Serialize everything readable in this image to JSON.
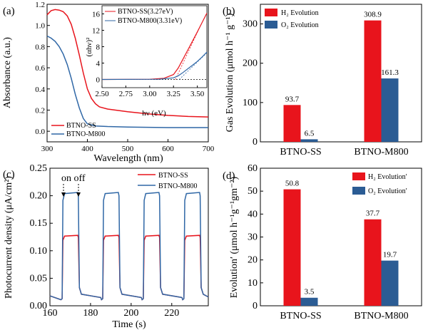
{
  "colors": {
    "red": "#e8141c",
    "blue": "#2f67a6",
    "dark_blue": "#2b5c94"
  },
  "chart_data": [
    {
      "id": "a",
      "panel_label": "(a)",
      "type": "line",
      "xlabel": "Wavelength (nm)",
      "ylabel": "Absorbance (a.u.)",
      "xlim": [
        300,
        700
      ],
      "ylim": [
        -0.1,
        1.2
      ],
      "xticks": [
        "300",
        "400",
        "500",
        "600",
        "700"
      ],
      "yticks": [
        "0.0",
        "0.2",
        "0.4",
        "0.6",
        "0.8",
        "1.0",
        "1.2"
      ],
      "series": [
        {
          "name": "BTNO-SS",
          "color": "red",
          "points": [
            [
              300,
              1.1
            ],
            [
              310,
              1.14
            ],
            [
              320,
              1.15
            ],
            [
              330,
              1.145
            ],
            [
              340,
              1.13
            ],
            [
              350,
              1.09
            ],
            [
              360,
              1.01
            ],
            [
              370,
              0.88
            ],
            [
              380,
              0.72
            ],
            [
              390,
              0.55
            ],
            [
              400,
              0.4
            ],
            [
              410,
              0.31
            ],
            [
              420,
              0.26
            ],
            [
              430,
              0.23
            ],
            [
              450,
              0.21
            ],
            [
              500,
              0.185
            ],
            [
              550,
              0.165
            ],
            [
              600,
              0.15
            ],
            [
              650,
              0.14
            ],
            [
              700,
              0.135
            ]
          ]
        },
        {
          "name": "BTNO-M800",
          "color": "blue",
          "points": [
            [
              300,
              0.9
            ],
            [
              310,
              0.88
            ],
            [
              320,
              0.85
            ],
            [
              330,
              0.8
            ],
            [
              340,
              0.73
            ],
            [
              350,
              0.63
            ],
            [
              360,
              0.5
            ],
            [
              370,
              0.35
            ],
            [
              380,
              0.22
            ],
            [
              390,
              0.12
            ],
            [
              400,
              0.07
            ],
            [
              420,
              0.05
            ],
            [
              450,
              0.045
            ],
            [
              500,
              0.04
            ],
            [
              600,
              0.035
            ],
            [
              700,
              0.035
            ]
          ]
        }
      ],
      "inset": {
        "type": "line",
        "xlabel": "hν (eV)",
        "ylabel": "(αhν)²",
        "xlim": [
          2.5,
          3.6
        ],
        "ylim": [
          -2,
          18
        ],
        "xticks": [
          "2.50",
          "2.75",
          "3.00",
          "3.25",
          "3.50"
        ],
        "yticks": [
          "0",
          "4",
          "8",
          "12",
          "16"
        ],
        "series": [
          {
            "name": "BTNO-SS(3.27eV)",
            "color": "red",
            "points": [
              [
                2.5,
                0
              ],
              [
                3.0,
                0.05
              ],
              [
                3.15,
                0.3
              ],
              [
                3.25,
                1.2
              ],
              [
                3.3,
                2.8
              ],
              [
                3.35,
                5.0
              ],
              [
                3.4,
                7.2
              ],
              [
                3.45,
                9.4
              ],
              [
                3.5,
                11.6
              ],
              [
                3.55,
                13.9
              ],
              [
                3.6,
                16.2
              ]
            ]
          },
          {
            "name": "BTNO-M800(3.31eV)",
            "color": "blue",
            "points": [
              [
                2.5,
                0
              ],
              [
                3.1,
                0.05
              ],
              [
                3.25,
                0.4
              ],
              [
                3.3,
                0.9
              ],
              [
                3.35,
                1.7
              ],
              [
                3.4,
                2.6
              ],
              [
                3.45,
                3.5
              ],
              [
                3.5,
                4.4
              ],
              [
                3.55,
                5.5
              ],
              [
                3.6,
                6.7
              ]
            ]
          }
        ],
        "fit_lines": [
          {
            "color": "red",
            "points": [
              [
                3.27,
                0
              ],
              [
                3.52,
                12.5
              ]
            ]
          },
          {
            "color": "blue",
            "points": [
              [
                3.31,
                0
              ],
              [
                3.6,
                6.5
              ]
            ]
          }
        ],
        "baseline": 0
      }
    },
    {
      "id": "b",
      "panel_label": "(b)",
      "type": "bar",
      "xlabel": "",
      "ylabel": "Gas Evolution (μmol h⁻¹ g⁻¹)",
      "ylim": [
        0,
        350
      ],
      "yticks": [
        "0",
        "100",
        "200",
        "300"
      ],
      "categories": [
        "BTNO-SS",
        "BTNO-M800"
      ],
      "series": [
        {
          "name": "H₂ Evolution",
          "color": "red",
          "values": [
            93.7,
            308.9
          ],
          "labels": [
            "93.7",
            "308.9"
          ]
        },
        {
          "name": "O₂ Evolution",
          "color": "dark_blue",
          "values": [
            6.5,
            161.3
          ],
          "labels": [
            "6.5",
            "161.3"
          ]
        }
      ]
    },
    {
      "id": "c",
      "panel_label": "(c)",
      "type": "line",
      "xlabel": "Time (s)",
      "ylabel": "Photocurrent density (μA/cm²)",
      "xlim": [
        160,
        238
      ],
      "ylim": [
        0.0,
        0.25
      ],
      "xticks": [
        "160",
        "180",
        "200",
        "220"
      ],
      "yticks": [
        "0.00",
        "0.05",
        "0.10",
        "0.15",
        "0.20",
        "0.25"
      ],
      "annotation": "on off",
      "on_times": [
        166,
        186,
        206,
        226
      ],
      "off_times": [
        174,
        194,
        214,
        234
      ],
      "series": [
        {
          "name": "BTNO-SS",
          "color": "red",
          "on_level": 0.128,
          "off_level": 0.013
        },
        {
          "name": "BTNO-M800",
          "color": "blue",
          "on_level": 0.206,
          "off_level": 0.013
        }
      ]
    },
    {
      "id": "d",
      "panel_label": "(d)",
      "type": "bar",
      "xlabel": "",
      "ylabel": "Evolution′ (μmol h⁻¹g⁻¹gm⁻²)",
      "ylim": [
        0,
        60
      ],
      "yticks": [
        "0",
        "10",
        "20",
        "30",
        "40",
        "50",
        "60"
      ],
      "categories": [
        "BTNO-SS",
        "BTNO-M800"
      ],
      "series": [
        {
          "name": "H₂ Evolution′",
          "color": "red",
          "values": [
            50.8,
            37.7
          ],
          "labels": [
            "50.8",
            "37.7"
          ]
        },
        {
          "name": "O₂ Evolution′",
          "color": "dark_blue",
          "values": [
            3.5,
            19.7
          ],
          "labels": [
            "3.5",
            "19.7"
          ]
        }
      ]
    }
  ]
}
